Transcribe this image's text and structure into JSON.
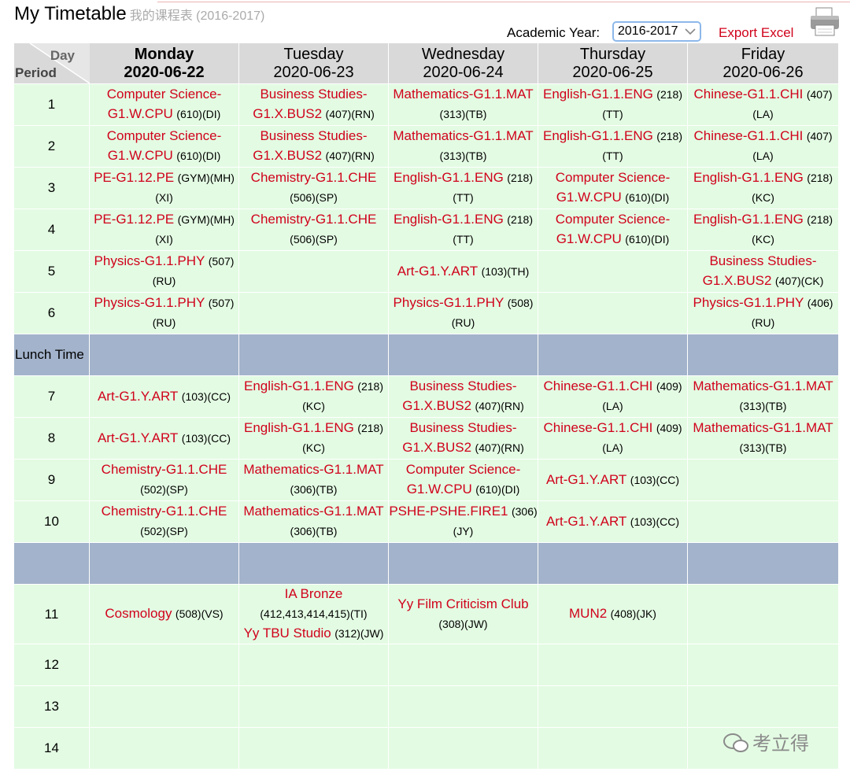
{
  "header": {
    "title": "My Timetable",
    "subtitle": "我的课程表 (2016-2017)",
    "year_label": "Academic Year:",
    "year_value": "2016-2017",
    "export": "Export Excel"
  },
  "table": {
    "corner_day": "Day",
    "corner_period": "Period",
    "days": [
      {
        "name": "Monday",
        "date": "2020-06-22"
      },
      {
        "name": "Tuesday",
        "date": "2020-06-23"
      },
      {
        "name": "Wednesday",
        "date": "2020-06-24"
      },
      {
        "name": "Thursday",
        "date": "2020-06-25"
      },
      {
        "name": "Friday",
        "date": "2020-06-26"
      }
    ],
    "rows": [
      {
        "period": "1",
        "cells": [
          [
            {
              "course": "Computer Science-G1.W.CPU",
              "detail": "(610)(DI)"
            }
          ],
          [
            {
              "course": "Business Studies-G1.X.BUS2",
              "detail": "(407)(RN)"
            }
          ],
          [
            {
              "course": "Mathematics-G1.1.MAT",
              "detail": "(313)(TB)"
            }
          ],
          [
            {
              "course": "English-G1.1.ENG",
              "detail": "(218)(TT)"
            }
          ],
          [
            {
              "course": "Chinese-G1.1.CHI",
              "detail": "(407)(LA)"
            }
          ]
        ]
      },
      {
        "period": "2",
        "cells": [
          [
            {
              "course": "Computer Science-G1.W.CPU",
              "detail": "(610)(DI)"
            }
          ],
          [
            {
              "course": "Business Studies-G1.X.BUS2",
              "detail": "(407)(RN)"
            }
          ],
          [
            {
              "course": "Mathematics-G1.1.MAT",
              "detail": "(313)(TB)"
            }
          ],
          [
            {
              "course": "English-G1.1.ENG",
              "detail": "(218)(TT)"
            }
          ],
          [
            {
              "course": "Chinese-G1.1.CHI",
              "detail": "(407)(LA)"
            }
          ]
        ]
      },
      {
        "period": "3",
        "cells": [
          [
            {
              "course": "PE-G1.12.PE",
              "detail": "(GYM)(MH)(XI)"
            }
          ],
          [
            {
              "course": "Chemistry-G1.1.CHE",
              "detail": "(506)(SP)"
            }
          ],
          [
            {
              "course": "English-G1.1.ENG",
              "detail": "(218)(TT)"
            }
          ],
          [
            {
              "course": "Computer Science-G1.W.CPU",
              "detail": "(610)(DI)"
            }
          ],
          [
            {
              "course": "English-G1.1.ENG",
              "detail": "(218)(KC)"
            }
          ]
        ]
      },
      {
        "period": "4",
        "cells": [
          [
            {
              "course": "PE-G1.12.PE",
              "detail": "(GYM)(MH)(XI)"
            }
          ],
          [
            {
              "course": "Chemistry-G1.1.CHE",
              "detail": "(506)(SP)"
            }
          ],
          [
            {
              "course": "English-G1.1.ENG",
              "detail": "(218)(TT)"
            }
          ],
          [
            {
              "course": "Computer Science-G1.W.CPU",
              "detail": "(610)(DI)"
            }
          ],
          [
            {
              "course": "English-G1.1.ENG",
              "detail": "(218)(KC)"
            }
          ]
        ]
      },
      {
        "period": "5",
        "cells": [
          [
            {
              "course": "Physics-G1.1.PHY",
              "detail": "(507)(RU)"
            }
          ],
          [],
          [
            {
              "course": "Art-G1.Y.ART",
              "detail": "(103)(TH)"
            }
          ],
          [],
          [
            {
              "course": "Business Studies-G1.X.BUS2",
              "detail": "(407)(CK)"
            }
          ]
        ]
      },
      {
        "period": "6",
        "cells": [
          [
            {
              "course": "Physics-G1.1.PHY",
              "detail": "(507)(RU)"
            }
          ],
          [],
          [
            {
              "course": "Physics-G1.1.PHY",
              "detail": "(508)(RU)"
            }
          ],
          [],
          [
            {
              "course": "Physics-G1.1.PHY",
              "detail": "(406)(RU)"
            }
          ]
        ]
      },
      {
        "period": "Lunch Time",
        "break": true
      },
      {
        "period": "7",
        "cells": [
          [
            {
              "course": "Art-G1.Y.ART",
              "detail": "(103)(CC)"
            }
          ],
          [
            {
              "course": "English-G1.1.ENG",
              "detail": "(218)(KC)"
            }
          ],
          [
            {
              "course": "Business Studies-G1.X.BUS2",
              "detail": "(407)(RN)"
            }
          ],
          [
            {
              "course": "Chinese-G1.1.CHI",
              "detail": "(409)(LA)"
            }
          ],
          [
            {
              "course": "Mathematics-G1.1.MAT",
              "detail": "(313)(TB)"
            }
          ]
        ]
      },
      {
        "period": "8",
        "cells": [
          [
            {
              "course": "Art-G1.Y.ART",
              "detail": "(103)(CC)"
            }
          ],
          [
            {
              "course": "English-G1.1.ENG",
              "detail": "(218)(KC)"
            }
          ],
          [
            {
              "course": "Business Studies-G1.X.BUS2",
              "detail": "(407)(RN)"
            }
          ],
          [
            {
              "course": "Chinese-G1.1.CHI",
              "detail": "(409)(LA)"
            }
          ],
          [
            {
              "course": "Mathematics-G1.1.MAT",
              "detail": "(313)(TB)"
            }
          ]
        ]
      },
      {
        "period": "9",
        "cells": [
          [
            {
              "course": "Chemistry-G1.1.CHE",
              "detail": "(502)(SP)"
            }
          ],
          [
            {
              "course": "Mathematics-G1.1.MAT",
              "detail": "(306)(TB)"
            }
          ],
          [
            {
              "course": "Computer Science-G1.W.CPU",
              "detail": "(610)(DI)"
            }
          ],
          [
            {
              "course": "Art-G1.Y.ART",
              "detail": "(103)(CC)"
            }
          ],
          []
        ]
      },
      {
        "period": "10",
        "cells": [
          [
            {
              "course": "Chemistry-G1.1.CHE",
              "detail": "(502)(SP)"
            }
          ],
          [
            {
              "course": "Mathematics-G1.1.MAT",
              "detail": "(306)(TB)"
            }
          ],
          [
            {
              "course": "PSHE-PSHE.FIRE1",
              "detail": "(306)(JY)"
            }
          ],
          [
            {
              "course": "Art-G1.Y.ART",
              "detail": "(103)(CC)"
            }
          ],
          []
        ]
      },
      {
        "break": true
      },
      {
        "period": "11",
        "cells": [
          [
            {
              "course": "Cosmology",
              "detail": "(508)(VS)"
            }
          ],
          [
            {
              "course": "IA Bronze",
              "detail": "(412,413,414,415)(TI)"
            },
            {
              "course": "Yy TBU Studio",
              "detail": "(312)(JW)"
            }
          ],
          [
            {
              "course": "Yy Film Criticism Club",
              "detail": "(308)(JW)"
            }
          ],
          [
            {
              "course": "MUN2",
              "detail": "(408)(JK)"
            }
          ],
          []
        ]
      },
      {
        "period": "12",
        "cells": [
          [],
          [],
          [],
          [],
          []
        ]
      },
      {
        "period": "13",
        "cells": [
          [],
          [],
          [],
          [],
          []
        ]
      },
      {
        "period": "14",
        "cells": [
          [],
          [],
          [],
          [],
          []
        ]
      }
    ]
  },
  "watermark": "考立得"
}
